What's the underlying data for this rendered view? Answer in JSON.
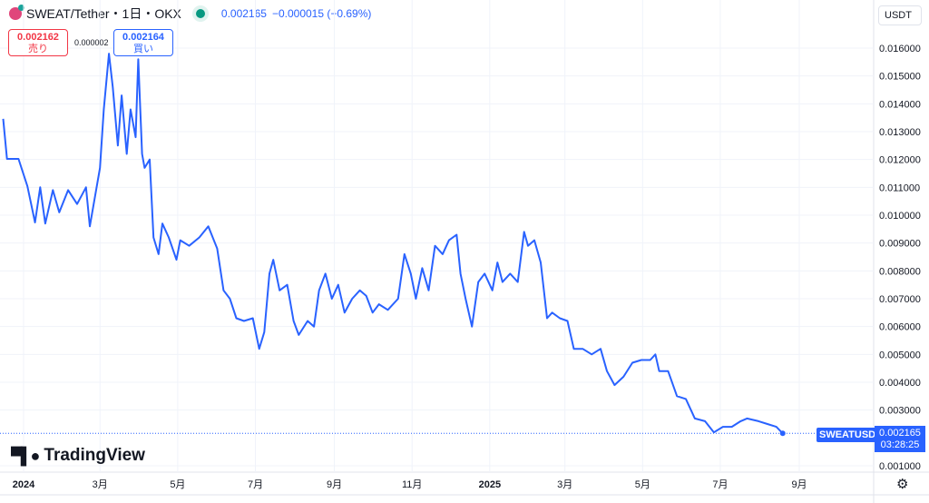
{
  "header": {
    "title": "SWEAT/Tether・1日・OKX",
    "last": "0.002165",
    "change": "−0.000015 (−0.69%)"
  },
  "trade": {
    "sell_price": "0.002162",
    "sell_label": "売り",
    "spread": "0.000002",
    "buy_price": "0.002164",
    "buy_label": "買い"
  },
  "currency": "USDT",
  "brand": "TradingView",
  "symbol_label": "SWEATUSDT",
  "last_price": "0.002165",
  "countdown": "03:28:25",
  "colors": {
    "line": "#2962ff",
    "grid": "#f0f3fa"
  },
  "icons": {
    "settings": "gear-icon"
  },
  "chart_data": {
    "type": "line",
    "ylim": [
      0.0007,
      0.0167
    ],
    "yticks": [
      "0.016000",
      "0.015000",
      "0.014000",
      "0.013000",
      "0.012000",
      "0.011000",
      "0.010000",
      "0.009000",
      "0.008000",
      "0.007000",
      "0.006000",
      "0.005000",
      "0.004000",
      "0.003000",
      "0.001000"
    ],
    "xticks": [
      {
        "date": "2024-01-01",
        "label": "2024"
      },
      {
        "date": "2024-03-01",
        "label": "3月"
      },
      {
        "date": "2024-05-01",
        "label": "5月"
      },
      {
        "date": "2024-07-01",
        "label": "7月"
      },
      {
        "date": "2024-09-01",
        "label": "9月"
      },
      {
        "date": "2024-11-01",
        "label": "11月"
      },
      {
        "date": "2025-01-01",
        "label": "2025"
      },
      {
        "date": "2025-03-01",
        "label": "3月"
      },
      {
        "date": "2025-05-01",
        "label": "5月"
      },
      {
        "date": "2025-07-01",
        "label": "7月"
      },
      {
        "date": "2025-09-01",
        "label": "9月"
      }
    ],
    "grid": true,
    "series": [
      {
        "x": [
          "2023-12-16",
          "2023-12-19",
          "2023-12-28",
          "2024-01-04",
          "2024-01-10",
          "2024-01-14",
          "2024-01-18",
          "2024-01-24",
          "2024-01-29",
          "2024-02-05",
          "2024-02-12",
          "2024-02-19",
          "2024-02-22",
          "2024-03-01",
          "2024-03-04",
          "2024-03-08",
          "2024-03-11",
          "2024-03-15",
          "2024-03-18",
          "2024-03-22",
          "2024-03-25",
          "2024-03-29",
          "2024-03-31",
          "2024-04-03",
          "2024-04-05",
          "2024-04-09",
          "2024-04-12",
          "2024-04-16",
          "2024-04-19",
          "2024-04-24",
          "2024-04-30",
          "2024-05-03",
          "2024-05-10",
          "2024-05-18",
          "2024-05-25",
          "2024-06-01",
          "2024-06-06",
          "2024-06-11",
          "2024-06-16",
          "2024-06-22",
          "2024-06-29",
          "2024-07-04",
          "2024-07-08",
          "2024-07-12",
          "2024-07-15",
          "2024-07-20",
          "2024-07-26",
          "2024-07-31",
          "2024-08-04",
          "2024-08-11",
          "2024-08-16",
          "2024-08-20",
          "2024-08-25",
          "2024-08-30",
          "2024-09-04",
          "2024-09-09",
          "2024-09-15",
          "2024-09-21",
          "2024-09-26",
          "2024-10-01",
          "2024-10-06",
          "2024-10-13",
          "2024-10-21",
          "2024-10-26",
          "2024-10-31",
          "2024-11-04",
          "2024-11-09",
          "2024-11-14",
          "2024-11-19",
          "2024-11-25",
          "2024-11-30",
          "2024-12-06",
          "2024-12-09",
          "2024-12-13",
          "2024-12-18",
          "2024-12-23",
          "2024-12-28",
          "2025-01-03",
          "2025-01-07",
          "2025-01-11",
          "2025-01-17",
          "2025-01-23",
          "2025-01-28",
          "2025-01-31",
          "2025-02-05",
          "2025-02-10",
          "2025-02-15",
          "2025-02-19",
          "2025-02-25",
          "2025-03-03",
          "2025-03-08",
          "2025-03-15",
          "2025-03-22",
          "2025-03-29",
          "2025-04-03",
          "2025-04-09",
          "2025-04-16",
          "2025-04-23",
          "2025-04-30",
          "2025-05-07",
          "2025-05-11",
          "2025-05-14",
          "2025-05-21",
          "2025-05-28",
          "2025-06-04",
          "2025-06-11",
          "2025-06-19",
          "2025-06-26",
          "2025-07-03",
          "2025-07-10",
          "2025-07-17",
          "2025-07-22",
          "2025-07-31",
          "2025-08-07",
          "2025-08-14",
          "2025-08-19"
        ],
        "y": [
          0.01346,
          0.01202,
          0.01202,
          0.01104,
          0.00974,
          0.011,
          0.0097,
          0.0109,
          0.0101,
          0.0109,
          0.0104,
          0.011,
          0.0096,
          0.0117,
          0.0138,
          0.0158,
          0.0146,
          0.0125,
          0.0143,
          0.0122,
          0.0138,
          0.0128,
          0.0156,
          0.0122,
          0.0117,
          0.012,
          0.0092,
          0.0086,
          0.0097,
          0.0092,
          0.0084,
          0.0091,
          0.0089,
          0.0092,
          0.0096,
          0.0088,
          0.0073,
          0.007,
          0.0063,
          0.0062,
          0.0063,
          0.0052,
          0.0058,
          0.0079,
          0.0084,
          0.0073,
          0.0075,
          0.0062,
          0.0057,
          0.0062,
          0.006,
          0.0073,
          0.0079,
          0.007,
          0.0075,
          0.0065,
          0.007,
          0.0073,
          0.0071,
          0.0065,
          0.0068,
          0.0066,
          0.007,
          0.0086,
          0.0079,
          0.007,
          0.0081,
          0.0073,
          0.0089,
          0.0086,
          0.0091,
          0.0093,
          0.0079,
          0.007,
          0.006,
          0.0076,
          0.0079,
          0.0073,
          0.0083,
          0.0076,
          0.0079,
          0.0076,
          0.0094,
          0.0089,
          0.0091,
          0.0083,
          0.0063,
          0.0065,
          0.0063,
          0.0062,
          0.0052,
          0.0052,
          0.005,
          0.0052,
          0.0044,
          0.0039,
          0.0042,
          0.0047,
          0.0048,
          0.0048,
          0.005,
          0.0044,
          0.0044,
          0.0035,
          0.0034,
          0.0027,
          0.0026,
          0.0022,
          0.0024,
          0.0024,
          0.0026,
          0.0027,
          0.0026,
          0.0025,
          0.0024,
          0.002165
        ]
      }
    ]
  }
}
